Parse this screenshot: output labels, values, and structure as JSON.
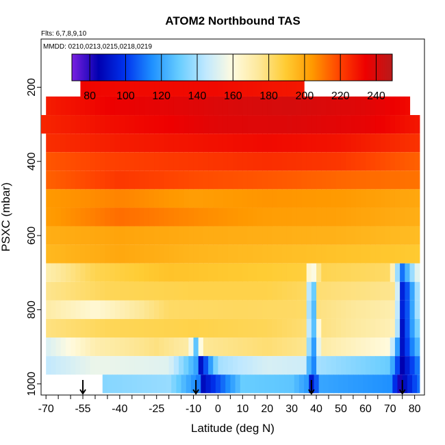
{
  "chart_data": {
    "type": "heatmap",
    "title": "ATOM2 Northbound TAS",
    "subtitle_flights": "Flts: 6,7,8,9,10",
    "subtitle_dates": "MMDD: 0210,0213,0215,0218,0219",
    "xlabel": "Latitude (deg N)",
    "ylabel": "PSXC (mbar)",
    "xlim": [
      -72,
      84
    ],
    "ylim": [
      1030,
      70
    ],
    "x_tick_labels": [
      "-70",
      "-55",
      "-40",
      "-25",
      "-10",
      "0",
      "10",
      "20",
      "30",
      "40",
      "50",
      "60",
      "70",
      "80"
    ],
    "x_tick_values": [
      -70,
      -55,
      -40,
      -25,
      -10,
      0,
      10,
      20,
      30,
      40,
      50,
      60,
      70,
      80
    ],
    "y_tick_labels": [
      "200",
      "400",
      "600",
      "800",
      "1000"
    ],
    "y_tick_values": [
      200,
      400,
      600,
      800,
      1000
    ],
    "colorbar": {
      "variable": "TAS",
      "min": 70,
      "max": 249,
      "tick_labels": [
        "80",
        "100",
        "120",
        "140",
        "160",
        "180",
        "200",
        "220",
        "240"
      ],
      "tick_values": [
        80,
        100,
        120,
        140,
        160,
        180,
        200,
        220,
        240
      ],
      "colors": [
        "#7a1fe0",
        "#0000b0",
        "#0033ee",
        "#1e90ff",
        "#66ccff",
        "#bfe8ff",
        "#fffbe0",
        "#fde89a",
        "#ffcc33",
        "#ff9900",
        "#ff4400",
        "#ee0000",
        "#b81a1a"
      ]
    },
    "pressure_levels": [
      200,
      250,
      300,
      350,
      400,
      450,
      500,
      550,
      600,
      650,
      700,
      750,
      800,
      850,
      900,
      950,
      1000
    ],
    "rows": [
      {
        "p": 200,
        "lat": [
          -56,
          35
        ],
        "tas": [
          [
            -56,
            233
          ],
          [
            -30,
            232
          ],
          [
            0,
            232
          ],
          [
            20,
            230
          ],
          [
            35,
            229
          ]
        ]
      },
      {
        "p": 250,
        "lat": [
          -70,
          78
        ],
        "tas": [
          [
            -70,
            228
          ],
          [
            -40,
            235
          ],
          [
            -10,
            238
          ],
          [
            8,
            240
          ],
          [
            30,
            241
          ],
          [
            60,
            238
          ],
          [
            78,
            232
          ]
        ]
      },
      {
        "p": 300,
        "lat": [
          -72,
          82
        ],
        "tas": [
          [
            -72,
            226
          ],
          [
            -45,
            231
          ],
          [
            -20,
            234
          ],
          [
            0,
            238
          ],
          [
            30,
            239
          ],
          [
            60,
            236
          ],
          [
            82,
            229
          ]
        ]
      },
      {
        "p": 350,
        "lat": [
          -70,
          82
        ],
        "tas": [
          [
            -70,
            224
          ],
          [
            -40,
            228
          ],
          [
            -10,
            230
          ],
          [
            20,
            232
          ],
          [
            50,
            230
          ],
          [
            82,
            223
          ]
        ]
      },
      {
        "p": 400,
        "lat": [
          -70,
          82
        ],
        "tas": [
          [
            -70,
            216
          ],
          [
            -45,
            220
          ],
          [
            -10,
            222
          ],
          [
            20,
            224
          ],
          [
            50,
            222
          ],
          [
            82,
            214
          ]
        ]
      },
      {
        "p": 450,
        "lat": [
          -70,
          82
        ],
        "tas": [
          [
            -70,
            214
          ],
          [
            -40,
            222
          ],
          [
            -10,
            218
          ],
          [
            20,
            216
          ],
          [
            50,
            213
          ],
          [
            82,
            211
          ]
        ]
      },
      {
        "p": 500,
        "lat": [
          -70,
          82
        ],
        "tas": [
          [
            -70,
            204
          ],
          [
            -40,
            208
          ],
          [
            -10,
            203
          ],
          [
            20,
            205
          ],
          [
            50,
            204
          ],
          [
            82,
            200
          ]
        ]
      },
      {
        "p": 550,
        "lat": [
          -70,
          82
        ],
        "tas": [
          [
            -70,
            203
          ],
          [
            -40,
            212
          ],
          [
            -10,
            207
          ],
          [
            20,
            203
          ],
          [
            50,
            202
          ],
          [
            82,
            198
          ]
        ]
      },
      {
        "p": 600,
        "lat": [
          -70,
          82
        ],
        "tas": [
          [
            -70,
            198
          ],
          [
            -40,
            201
          ],
          [
            -10,
            199
          ],
          [
            20,
            198
          ],
          [
            50,
            197
          ],
          [
            82,
            194
          ]
        ]
      },
      {
        "p": 650,
        "lat": [
          -70,
          82
        ],
        "tas": [
          [
            -70,
            195
          ],
          [
            -40,
            200
          ],
          [
            -10,
            196
          ],
          [
            20,
            194
          ],
          [
            50,
            192
          ],
          [
            82,
            190
          ]
        ]
      },
      {
        "p": 700,
        "lat": [
          -70,
          82
        ],
        "tas": [
          [
            -70,
            170
          ],
          [
            -50,
            185
          ],
          [
            -20,
            192
          ],
          [
            10,
            190
          ],
          [
            35,
            188
          ],
          [
            38,
            150
          ],
          [
            42,
            185
          ],
          [
            70,
            182
          ],
          [
            75,
            110
          ],
          [
            82,
            160
          ]
        ]
      },
      {
        "p": 750,
        "lat": [
          -70,
          82
        ],
        "tas": [
          [
            -70,
            176
          ],
          [
            -45,
            184
          ],
          [
            -10,
            186
          ],
          [
            20,
            186
          ],
          [
            36,
            183
          ],
          [
            38,
            105
          ],
          [
            41,
            180
          ],
          [
            72,
            176
          ],
          [
            75,
            95
          ],
          [
            78,
            110
          ],
          [
            82,
            150
          ]
        ]
      },
      {
        "p": 800,
        "lat": [
          -70,
          82
        ],
        "tas": [
          [
            -70,
            172
          ],
          [
            -50,
            162
          ],
          [
            -20,
            182
          ],
          [
            10,
            183
          ],
          [
            36,
            182
          ],
          [
            38,
            100
          ],
          [
            41,
            178
          ],
          [
            72,
            170
          ],
          [
            75,
            95
          ],
          [
            78,
            110
          ],
          [
            82,
            150
          ]
        ]
      },
      {
        "p": 850,
        "lat": [
          -70,
          82
        ],
        "tas": [
          [
            -70,
            178
          ],
          [
            -45,
            184
          ],
          [
            -10,
            186
          ],
          [
            20,
            184
          ],
          [
            36,
            180
          ],
          [
            38,
            110
          ],
          [
            42,
            178
          ],
          [
            72,
            168
          ],
          [
            75,
            90
          ],
          [
            82,
            140
          ]
        ]
      },
      {
        "p": 900,
        "lat": [
          -70,
          82
        ],
        "tas": [
          [
            -70,
            150
          ],
          [
            -50,
            170
          ],
          [
            -25,
            178
          ],
          [
            -12,
            172
          ],
          [
            -9,
            128
          ],
          [
            -6,
            175
          ],
          [
            20,
            180
          ],
          [
            36,
            176
          ],
          [
            38,
            100
          ],
          [
            42,
            172
          ],
          [
            70,
            160
          ],
          [
            75,
            90
          ],
          [
            82,
            130
          ]
        ]
      },
      {
        "p": 950,
        "lat": [
          -70,
          82
        ],
        "tas": [
          [
            -70,
            145
          ],
          [
            -50,
            155
          ],
          [
            -20,
            152
          ],
          [
            -9,
            120
          ],
          [
            -7,
            90
          ],
          [
            0,
            140
          ],
          [
            20,
            150
          ],
          [
            36,
            148
          ],
          [
            38,
            100
          ],
          [
            41,
            140
          ],
          [
            70,
            130
          ],
          [
            75,
            85
          ],
          [
            82,
            115
          ]
        ]
      },
      {
        "p": 1000,
        "lat": [
          -47,
          82
        ],
        "tas": [
          [
            -47,
            135
          ],
          [
            -20,
            138
          ],
          [
            -8,
            112
          ],
          [
            -6,
            88
          ],
          [
            10,
            130
          ],
          [
            30,
            128
          ],
          [
            36,
            118
          ],
          [
            38,
            92
          ],
          [
            42,
            120
          ],
          [
            70,
            115
          ],
          [
            74,
            82
          ],
          [
            82,
            110
          ]
        ]
      }
    ],
    "markers": {
      "symbol": "down-arrow",
      "latitudes": [
        -55,
        -9,
        38,
        75
      ]
    }
  }
}
